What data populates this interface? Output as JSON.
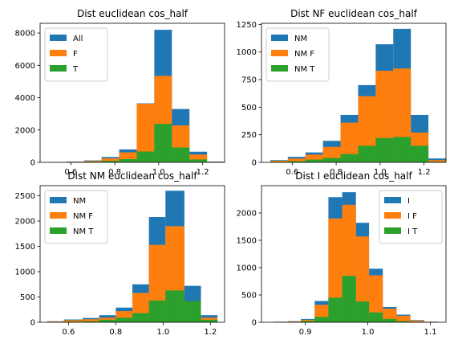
{
  "chart_data": [
    {
      "type": "histogram",
      "title": "Dist euclidean cos_half",
      "xlim": [
        0.46,
        1.3
      ],
      "ylim": [
        0,
        8600
      ],
      "xticks": [
        0.6,
        0.8,
        1.0,
        1.2
      ],
      "xtick_labels": [
        "0.6",
        "0.8",
        "1.0",
        "1.2"
      ],
      "yticks": [
        0,
        2000,
        4000,
        6000,
        8000
      ],
      "ytick_labels": [
        "0",
        "2000",
        "4000",
        "6000",
        "8000"
      ],
      "legend": "upper left",
      "series": [
        {
          "name": "All",
          "color": "#1f77b4",
          "bins": [
            [
              0.5,
              0.58,
              15
            ],
            [
              0.58,
              0.66,
              45
            ],
            [
              0.66,
              0.74,
              120
            ],
            [
              0.74,
              0.82,
              330
            ],
            [
              0.82,
              0.9,
              800
            ],
            [
              0.9,
              0.98,
              3650
            ],
            [
              0.98,
              1.06,
              8200
            ],
            [
              1.06,
              1.14,
              3300
            ],
            [
              1.14,
              1.22,
              660
            ],
            [
              1.22,
              1.3,
              50
            ]
          ]
        },
        {
          "name": "F",
          "color": "#ff7f0e",
          "bins": [
            [
              0.5,
              0.58,
              10
            ],
            [
              0.58,
              0.66,
              35
            ],
            [
              0.66,
              0.74,
              90
            ],
            [
              0.74,
              0.82,
              250
            ],
            [
              0.82,
              0.9,
              620
            ],
            [
              0.9,
              0.98,
              3620
            ],
            [
              0.98,
              1.06,
              5350
            ],
            [
              1.06,
              1.14,
              2280
            ],
            [
              1.14,
              1.22,
              480
            ],
            [
              1.22,
              1.3,
              35
            ]
          ]
        },
        {
          "name": "T",
          "color": "#2ca02c",
          "bins": [
            [
              0.5,
              0.58,
              5
            ],
            [
              0.58,
              0.66,
              15
            ],
            [
              0.66,
              0.74,
              35
            ],
            [
              0.74,
              0.82,
              90
            ],
            [
              0.82,
              0.9,
              200
            ],
            [
              0.9,
              0.98,
              670
            ],
            [
              0.98,
              1.06,
              2380
            ],
            [
              1.06,
              1.14,
              920
            ],
            [
              1.14,
              1.22,
              180
            ],
            [
              1.22,
              1.3,
              10
            ]
          ]
        }
      ]
    },
    {
      "type": "histogram",
      "title": "Dist NF euclidean cos_half",
      "xlim": [
        0.46,
        1.3
      ],
      "ylim": [
        0,
        1260
      ],
      "xticks": [
        0.6,
        0.8,
        1.0,
        1.2
      ],
      "xtick_labels": [
        "0.6",
        "0.8",
        "1.0",
        "1.2"
      ],
      "yticks": [
        0,
        250,
        500,
        750,
        1000,
        1250
      ],
      "ytick_labels": [
        "0",
        "250",
        "500",
        "750",
        "1000",
        "1250"
      ],
      "legend": "upper left",
      "series": [
        {
          "name": "NM",
          "color": "#1f77b4",
          "bins": [
            [
              0.5,
              0.58,
              20
            ],
            [
              0.58,
              0.66,
              50
            ],
            [
              0.66,
              0.74,
              90
            ],
            [
              0.74,
              0.82,
              195
            ],
            [
              0.82,
              0.9,
              430
            ],
            [
              0.9,
              0.98,
              700
            ],
            [
              0.98,
              1.06,
              1070
            ],
            [
              1.06,
              1.14,
              1210
            ],
            [
              1.14,
              1.22,
              430
            ],
            [
              1.22,
              1.3,
              35
            ]
          ]
        },
        {
          "name": "NM F",
          "color": "#ff7f0e",
          "bins": [
            [
              0.5,
              0.58,
              15
            ],
            [
              0.58,
              0.66,
              35
            ],
            [
              0.66,
              0.74,
              70
            ],
            [
              0.74,
              0.82,
              140
            ],
            [
              0.82,
              0.9,
              360
            ],
            [
              0.9,
              0.98,
              600
            ],
            [
              0.98,
              1.06,
              830
            ],
            [
              1.06,
              1.14,
              850
            ],
            [
              1.14,
              1.22,
              270
            ],
            [
              1.22,
              1.3,
              20
            ]
          ]
        },
        {
          "name": "NM T",
          "color": "#2ca02c",
          "bins": [
            [
              0.5,
              0.58,
              5
            ],
            [
              0.58,
              0.66,
              10
            ],
            [
              0.66,
              0.74,
              25
            ],
            [
              0.74,
              0.82,
              40
            ],
            [
              0.82,
              0.9,
              75
            ],
            [
              0.9,
              0.98,
              150
            ],
            [
              0.98,
              1.06,
              220
            ],
            [
              1.06,
              1.14,
              230
            ],
            [
              1.14,
              1.22,
              150
            ],
            [
              1.22,
              1.3,
              5
            ]
          ]
        }
      ]
    },
    {
      "type": "histogram",
      "title": "Dist NM euclidean cos_half",
      "xlim": [
        0.48,
        1.26
      ],
      "ylim": [
        0,
        2700
      ],
      "xticks": [
        0.6,
        0.8,
        1.0,
        1.2
      ],
      "xtick_labels": [
        "0.6",
        "0.8",
        "1.0",
        "1.2"
      ],
      "yticks": [
        0,
        500,
        1000,
        1500,
        2000,
        2500
      ],
      "ytick_labels": [
        "0",
        "500",
        "1000",
        "1500",
        "2000",
        "2500"
      ],
      "legend": "upper left",
      "series": [
        {
          "name": "NM",
          "color": "#1f77b4",
          "bins": [
            [
              0.51,
              0.58,
              20
            ],
            [
              0.58,
              0.66,
              55
            ],
            [
              0.66,
              0.73,
              85
            ],
            [
              0.73,
              0.8,
              140
            ],
            [
              0.8,
              0.87,
              290
            ],
            [
              0.87,
              0.94,
              750
            ],
            [
              0.94,
              1.01,
              2080
            ],
            [
              1.01,
              1.09,
              2600
            ],
            [
              1.09,
              1.16,
              720
            ],
            [
              1.16,
              1.23,
              140
            ]
          ]
        },
        {
          "name": "NM F",
          "color": "#ff7f0e",
          "bins": [
            [
              0.51,
              0.58,
              15
            ],
            [
              0.58,
              0.66,
              40
            ],
            [
              0.66,
              0.73,
              60
            ],
            [
              0.73,
              0.8,
              90
            ],
            [
              0.8,
              0.87,
              220
            ],
            [
              0.87,
              0.94,
              580
            ],
            [
              0.94,
              1.01,
              1530
            ],
            [
              1.01,
              1.09,
              1900
            ],
            [
              1.09,
              1.16,
              420
            ],
            [
              1.16,
              1.23,
              90
            ]
          ]
        },
        {
          "name": "NM T",
          "color": "#2ca02c",
          "bins": [
            [
              0.51,
              0.58,
              5
            ],
            [
              0.58,
              0.66,
              10
            ],
            [
              0.66,
              0.73,
              20
            ],
            [
              0.73,
              0.8,
              50
            ],
            [
              0.8,
              0.87,
              90
            ],
            [
              0.87,
              0.94,
              180
            ],
            [
              0.94,
              1.01,
              430
            ],
            [
              1.01,
              1.09,
              630
            ],
            [
              1.09,
              1.16,
              420
            ],
            [
              1.16,
              1.23,
              50
            ]
          ]
        }
      ]
    },
    {
      "type": "histogram",
      "title": "Dist I euclidean cos_half",
      "xlim": [
        0.83,
        1.125
      ],
      "ylim": [
        0,
        2500
      ],
      "xticks": [
        0.9,
        1.0,
        1.1
      ],
      "xtick_labels": [
        "0.9",
        "1.0",
        "1.1"
      ],
      "yticks": [
        0,
        500,
        1000,
        1500,
        2000
      ],
      "ytick_labels": [
        "0",
        "500",
        "1000",
        "1500",
        "2000"
      ],
      "legend": "upper right",
      "series": [
        {
          "name": "I",
          "color": "#1f77b4",
          "bins": [
            [
              0.85,
              0.872,
              10
            ],
            [
              0.872,
              0.893,
              20
            ],
            [
              0.893,
              0.915,
              60
            ],
            [
              0.915,
              0.937,
              390
            ],
            [
              0.937,
              0.959,
              2290
            ],
            [
              0.959,
              0.981,
              2380
            ],
            [
              0.981,
              1.002,
              1820
            ],
            [
              1.002,
              1.024,
              980
            ],
            [
              1.024,
              1.046,
              280
            ],
            [
              1.046,
              1.068,
              140
            ],
            [
              1.068,
              1.09,
              40
            ],
            [
              1.09,
              1.112,
              10
            ]
          ]
        },
        {
          "name": "I F",
          "color": "#ff7f0e",
          "bins": [
            [
              0.85,
              0.872,
              5
            ],
            [
              0.872,
              0.893,
              15
            ],
            [
              0.893,
              0.915,
              45
            ],
            [
              0.915,
              0.937,
              320
            ],
            [
              0.937,
              0.959,
              1900
            ],
            [
              0.959,
              0.981,
              2150
            ],
            [
              0.981,
              1.002,
              1570
            ],
            [
              1.002,
              1.024,
              860
            ],
            [
              1.024,
              1.046,
              250
            ],
            [
              1.046,
              1.068,
              120
            ],
            [
              1.068,
              1.09,
              30
            ],
            [
              1.09,
              1.112,
              10
            ]
          ]
        },
        {
          "name": "I T",
          "color": "#2ca02c",
          "bins": [
            [
              0.85,
              0.872,
              2
            ],
            [
              0.872,
              0.893,
              8
            ],
            [
              0.893,
              0.915,
              25
            ],
            [
              0.915,
              0.937,
              100
            ],
            [
              0.937,
              0.959,
              450
            ],
            [
              0.959,
              0.981,
              850
            ],
            [
              0.981,
              1.002,
              380
            ],
            [
              1.002,
              1.024,
              180
            ],
            [
              1.024,
              1.046,
              60
            ],
            [
              1.046,
              1.068,
              20
            ],
            [
              1.068,
              1.09,
              5
            ],
            [
              1.09,
              1.112,
              2
            ]
          ]
        }
      ]
    }
  ]
}
